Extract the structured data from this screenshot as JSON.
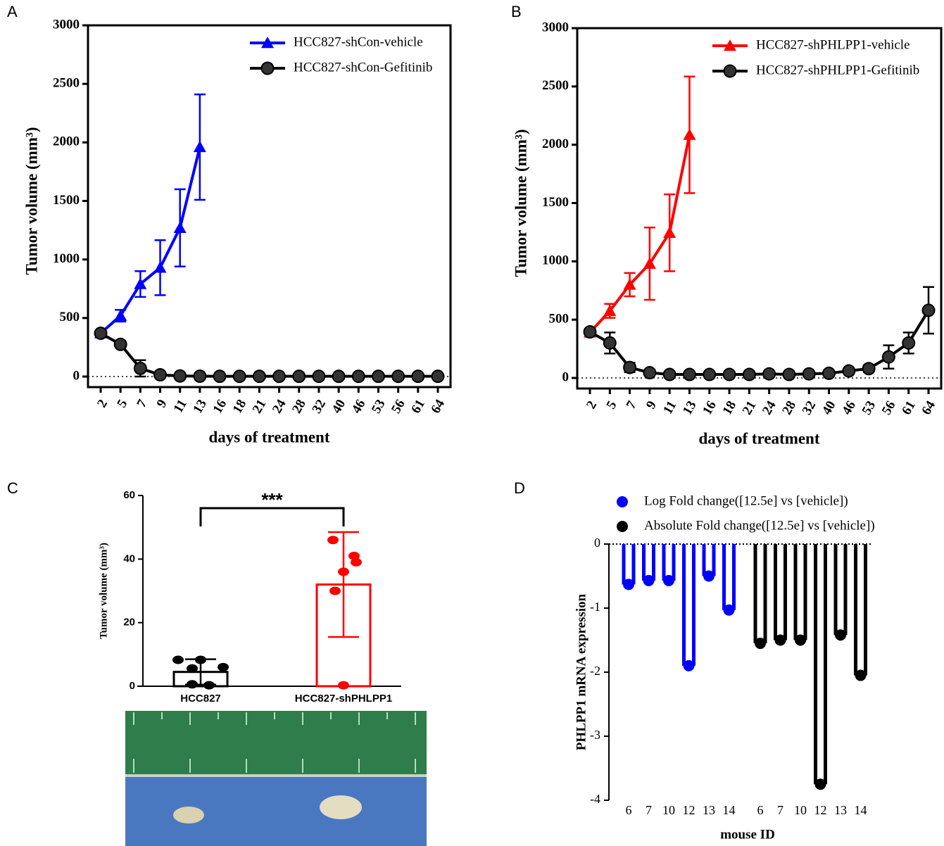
{
  "chart_data": [
    {
      "panel": "A",
      "type": "line",
      "xlabel": "days of treatment",
      "ylabel": "Tumor volume (mm³)",
      "categories": [
        "2",
        "5",
        "7",
        "9",
        "11",
        "13",
        "16",
        "18",
        "21",
        "24",
        "28",
        "32",
        "40",
        "46",
        "53",
        "56",
        "61",
        "64"
      ],
      "ylim": [
        0,
        3000
      ],
      "yticks": [
        0,
        500,
        1000,
        1500,
        2000,
        2500,
        3000
      ],
      "legend": "upper right",
      "series": [
        {
          "name": "HCC827-shCon-vehicle",
          "color": "#0000ff",
          "marker": "triangle",
          "values": [
            370,
            520,
            790,
            930,
            1270,
            1960,
            null,
            null,
            null,
            null,
            null,
            null,
            null,
            null,
            null,
            null,
            null,
            null
          ],
          "errors": [
            20,
            50,
            110,
            235,
            330,
            450,
            null,
            null,
            null,
            null,
            null,
            null,
            null,
            null,
            null,
            null,
            null,
            null
          ]
        },
        {
          "name": "HCC827-shCon-Gefitinib",
          "color": "#000000",
          "marker": "circle",
          "values": [
            370,
            275,
            70,
            15,
            5,
            3,
            2,
            2,
            2,
            2,
            2,
            2,
            2,
            2,
            2,
            2,
            2,
            2
          ],
          "errors": [
            20,
            25,
            70,
            12,
            5,
            3,
            2,
            2,
            2,
            2,
            2,
            2,
            2,
            2,
            2,
            2,
            2,
            2
          ]
        }
      ]
    },
    {
      "panel": "B",
      "type": "line",
      "xlabel": "days of treatment",
      "ylabel": "Tumor volume (mm³)",
      "categories": [
        "2",
        "5",
        "7",
        "9",
        "11",
        "13",
        "16",
        "18",
        "21",
        "24",
        "28",
        "32",
        "40",
        "46",
        "53",
        "56",
        "61",
        "64"
      ],
      "ylim": [
        0,
        3000
      ],
      "yticks": [
        0,
        500,
        1000,
        1500,
        2000,
        2500,
        3000
      ],
      "legend": "upper right",
      "series": [
        {
          "name": "HCC827-shPHLPP1-vehicle",
          "color": "#ff0000",
          "marker": "triangle",
          "values": [
            390,
            575,
            800,
            980,
            1245,
            2085,
            null,
            null,
            null,
            null,
            null,
            null,
            null,
            null,
            null,
            null,
            null,
            null
          ],
          "errors": [
            20,
            60,
            100,
            310,
            330,
            500,
            null,
            null,
            null,
            null,
            null,
            null,
            null,
            null,
            null,
            null,
            null,
            null
          ]
        },
        {
          "name": "HCC827-shPHLPP1-Gefitinib",
          "color": "#000000",
          "marker": "circle",
          "values": [
            395,
            300,
            90,
            45,
            30,
            30,
            30,
            30,
            30,
            35,
            30,
            35,
            40,
            60,
            80,
            180,
            300,
            580
          ],
          "errors": [
            25,
            90,
            40,
            10,
            5,
            5,
            5,
            5,
            5,
            5,
            5,
            5,
            10,
            10,
            30,
            100,
            90,
            200
          ]
        }
      ]
    },
    {
      "panel": "C",
      "type": "bar",
      "ylabel": "Tumor volume (mm³)",
      "annotation": "***",
      "categories": [
        "HCC827",
        "HCC827-shPHLPP1"
      ],
      "values": [
        4.5,
        32
      ],
      "errors": [
        4,
        16.5
      ],
      "colors": [
        "#000000",
        "#ff0000"
      ],
      "points": [
        [
          8.3,
          8.3,
          6,
          5.6,
          0.6,
          0.3
        ],
        [
          46,
          41,
          39,
          36,
          30,
          0.3
        ]
      ],
      "ylim": [
        0,
        60
      ],
      "yticks": [
        0,
        20,
        40,
        60
      ]
    },
    {
      "panel": "D",
      "type": "lollipop",
      "xlabel": "mouse ID",
      "ylabel": "PHLPP1 mRNA expression",
      "categories": [
        "6",
        "7",
        "10",
        "12",
        "13",
        "14"
      ],
      "ylim": [
        -4,
        0
      ],
      "yticks": [
        0,
        -1,
        -2,
        -3,
        -4
      ],
      "legend": "upper left",
      "series": [
        {
          "name": "Log Fold change([12.5e] vs [vehicle])",
          "color": "#0000ff",
          "values": [
            -0.63,
            -0.57,
            -0.57,
            -1.9,
            -0.5,
            -1.03
          ]
        },
        {
          "name": "Absolute Fold change([12.5e] vs [vehicle])",
          "color": "#000000",
          "values": [
            -1.55,
            -1.5,
            -1.5,
            -3.75,
            -1.42,
            -2.05
          ]
        }
      ]
    }
  ]
}
